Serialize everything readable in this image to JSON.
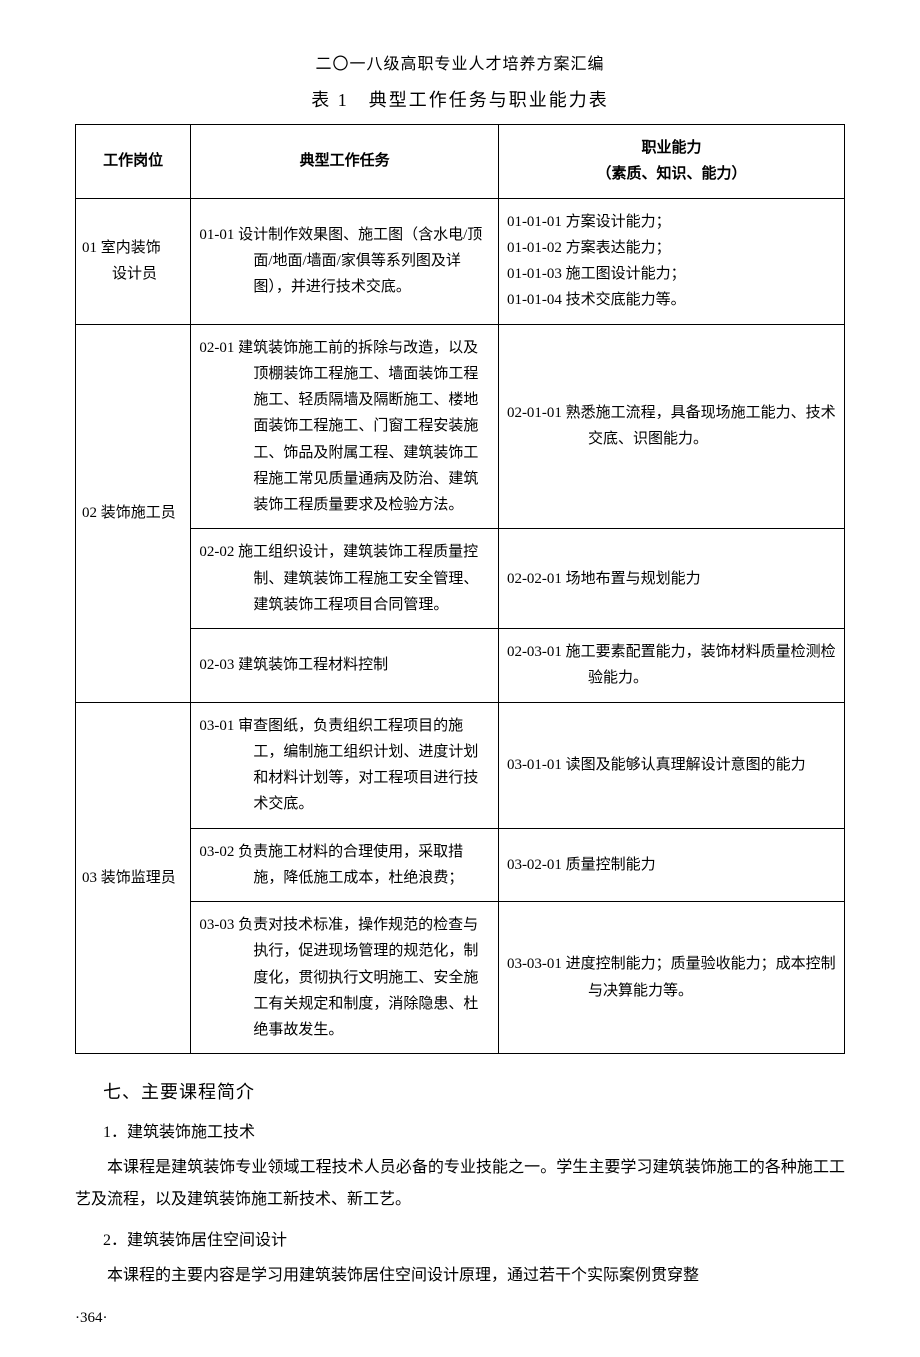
{
  "header": "二〇一八级高职专业人才培养方案汇编",
  "table_caption": "表 1　典型工作任务与职业能力表",
  "columns": {
    "c1": "工作岗位",
    "c2": "典型工作任务",
    "c3_line1": "职业能力",
    "c3_line2": "（素质、知识、能力）"
  },
  "rows": {
    "r1": {
      "position_line1": "01 室内装饰",
      "position_line2": "设计员",
      "task": "01-01 设计制作效果图、施工图（含水电/顶面/地面/墙面/家俱等系列图及详图），并进行技术交底。",
      "ability_l1": "01-01-01 方案设计能力；",
      "ability_l2": "01-01-02 方案表达能力；",
      "ability_l3": "01-01-03 施工图设计能力；",
      "ability_l4": "01-01-04 技术交底能力等。"
    },
    "r2": {
      "position": "02 装饰施工员",
      "task1": "02-01 建筑装饰施工前的拆除与改造，以及顶棚装饰工程施工、墙面装饰工程施工、轻质隔墙及隔断施工、楼地面装饰工程施工、门窗工程安装施工、饰品及附属工程、建筑装饰工程施工常见质量通病及防治、建筑装饰工程质量要求及检验方法。",
      "ability1": "02-01-01 熟悉施工流程，具备现场施工能力、技术交底、识图能力。",
      "task2": "02-02 施工组织设计，建筑装饰工程质量控制、建筑装饰工程施工安全管理、建筑装饰工程项目合同管理。",
      "ability2": "02-02-01 场地布置与规划能力",
      "task3": "02-03 建筑装饰工程材料控制",
      "ability3": "02-03-01 施工要素配置能力，装饰材料质量检测检验能力。"
    },
    "r3": {
      "position": "03 装饰监理员",
      "task1": "03-01 审查图纸，负责组织工程项目的施工，编制施工组织计划、进度计划和材料计划等，对工程项目进行技术交底。",
      "ability1": "03-01-01 读图及能够认真理解设计意图的能力",
      "task2": "03-02 负责施工材料的合理使用，采取措施，降低施工成本，杜绝浪费；",
      "ability2": "03-02-01 质量控制能力",
      "task3": "03-03 负责对技术标准，操作规范的检查与执行，促进现场管理的规范化，制度化，贯彻执行文明施工、安全施工有关规定和制度，消除隐患、杜绝事故发生。",
      "ability3": "03-03-01 进度控制能力；质量验收能力；成本控制与决算能力等。"
    }
  },
  "section7": {
    "heading": "七、主要课程简介",
    "sub1_title": "1．建筑装饰施工技术",
    "sub1_body": "本课程是建筑装饰专业领域工程技术人员必备的专业技能之一。学生主要学习建筑装饰施工的各种施工工艺及流程，以及建筑装饰施工新技术、新工艺。",
    "sub2_title": "2．建筑装饰居住空间设计",
    "sub2_body": "本课程的主要内容是学习用建筑装饰居住空间设计原理，通过若干个实际案例贯穿整"
  },
  "page_number": "·364·",
  "style": {
    "background_color": "#ffffff",
    "text_color": "#000000",
    "border_color": "#000000",
    "body_font_size": 16,
    "table_font_size": 15
  }
}
